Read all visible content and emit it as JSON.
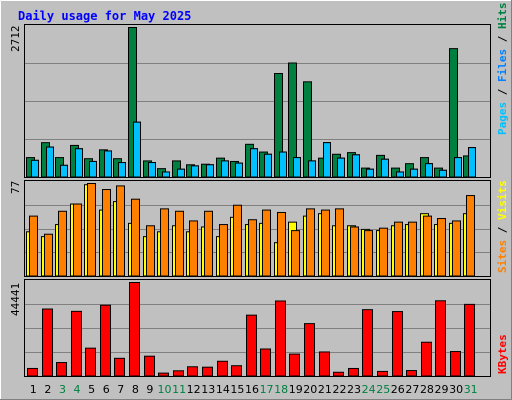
{
  "chart_data": {
    "type": "bar",
    "title": "Daily usage for May 2025",
    "days": [
      "1",
      "2",
      "3",
      "4",
      "5",
      "6",
      "7",
      "8",
      "9",
      "10",
      "11",
      "12",
      "13",
      "14",
      "15",
      "16",
      "17",
      "18",
      "19",
      "20",
      "21",
      "22",
      "23",
      "24",
      "25",
      "26",
      "27",
      "28",
      "29",
      "30",
      "31"
    ],
    "weekend_days": [
      "3",
      "4",
      "10",
      "11",
      "17",
      "18",
      "24",
      "25",
      "31"
    ],
    "panels": [
      {
        "ymax_label": "2712",
        "ymax": 2712,
        "ylabels": [
          "Pages",
          "Files",
          "Hits"
        ],
        "series": [
          {
            "name": "Hits",
            "color": "#008040",
            "values": [
              360,
              630,
              360,
              580,
              340,
              500,
              340,
              2712,
              300,
              160,
              300,
              230,
              240,
              350,
              290,
              600,
              460,
              1880,
              2070,
              1730,
              350,
              420,
              450,
              170,
              400,
              170,
              250,
              360,
              170,
              2330,
              390
            ]
          },
          {
            "name": "Files",
            "color": "#0080ff",
            "values": [
              310,
              550,
              220,
              520,
              290,
              480,
              270,
              1000,
              270,
              100,
              150,
              210,
              230,
              300,
              260,
              520,
              420,
              460,
              360,
              300,
              630,
              350,
              410,
              150,
              330,
              100,
              150,
              250,
              130,
              360,
              540
            ]
          },
          {
            "name": "Pages",
            "color": "#00c0ff",
            "values": [
              310,
              550,
              220,
              520,
              290,
              480,
              270,
              1000,
              270,
              100,
              150,
              210,
              230,
              300,
              260,
              520,
              420,
              460,
              360,
              300,
              630,
              350,
              410,
              150,
              330,
              100,
              150,
              250,
              130,
              360,
              540
            ]
          }
        ]
      },
      {
        "ymax_label": "77",
        "ymax": 77,
        "ylabels": [
          "Sites",
          "Visits"
        ],
        "series": [
          {
            "name": "Visits",
            "color": "#ffff00",
            "values": [
              37,
              33,
              43,
              60,
              76,
              55,
              62,
              44,
              33,
              37,
              42,
              37,
              41,
              33,
              49,
              43,
              44,
              28,
              45,
              50,
              52,
              42,
              42,
              39,
              38,
              42,
              43,
              52,
              43,
              44,
              52
            ]
          },
          {
            "name": "Sites",
            "color": "#ff8000",
            "values": [
              50,
              35,
              54,
              60,
              77,
              72,
              75,
              64,
              42,
              56,
              54,
              46,
              54,
              43,
              59,
              47,
              55,
              53,
              38,
              56,
              55,
              56,
              41,
              38,
              40,
              45,
              45,
              50,
              48,
              46,
              67
            ]
          }
        ]
      },
      {
        "ymax_label": "44441",
        "ymax": 44441,
        "ylabels": [
          "KBytes"
        ],
        "series": [
          {
            "name": "KBytes",
            "color": "#ff0000",
            "values": [
              3800,
              31900,
              6600,
              30800,
              13400,
              33700,
              8600,
              44441,
              9600,
              1600,
              2700,
              4600,
              4400,
              7200,
              5100,
              29000,
              13000,
              35700,
              10600,
              25000,
              11600,
              2000,
              3800,
              31600,
              2400,
              30700,
              2800,
              16200,
              35800,
              11800,
              34100
            ]
          }
        ]
      }
    ]
  }
}
